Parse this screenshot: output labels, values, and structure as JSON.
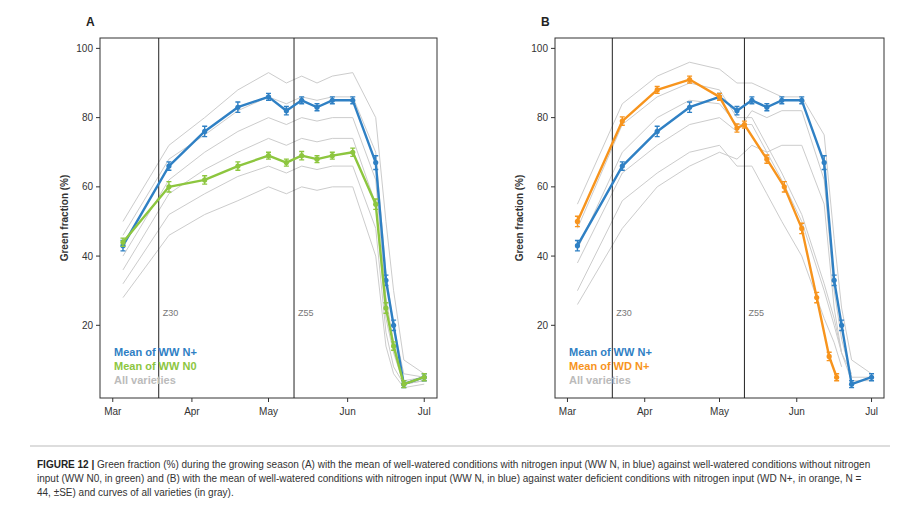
{
  "chart_data": [
    {
      "type": "line",
      "panel": "A",
      "y_label": "Green fraction (%)",
      "xlim": [
        55,
        187
      ],
      "xticks": [
        {
          "value": 60,
          "label": "Mar"
        },
        {
          "value": 91,
          "label": "Apr"
        },
        {
          "value": 121,
          "label": "May"
        },
        {
          "value": 152,
          "label": "Jun"
        },
        {
          "value": 182,
          "label": "Jul"
        }
      ],
      "ylim": [
        -1,
        103
      ],
      "yticks": [
        20,
        40,
        60,
        80,
        100
      ],
      "vlines": [
        {
          "value": 78,
          "label": "Z30"
        },
        {
          "value": 131,
          "label": "Z55"
        }
      ],
      "legend": "lower left",
      "series": [
        {
          "name": "Mean of WW N+",
          "color": "#2f80c4",
          "marker": "circle",
          "x": [
            64,
            82,
            96,
            109,
            121,
            128,
            134,
            140,
            146,
            154,
            163,
            167,
            170,
            174,
            182
          ],
          "values": [
            43,
            66,
            76,
            83,
            86,
            82,
            85,
            83,
            85,
            85,
            67,
            33,
            20,
            3,
            5
          ],
          "errors": [
            1.5,
            1.2,
            1.5,
            1.5,
            1,
            1.2,
            1,
            1,
            1,
            1,
            2,
            1.5,
            1.5,
            1,
            1
          ]
        },
        {
          "name": "Mean of WW N0",
          "color": "#8dc63f",
          "marker": "circle",
          "x": [
            64,
            82,
            96,
            109,
            121,
            128,
            134,
            140,
            146,
            154,
            163,
            167,
            170,
            174,
            182
          ],
          "values": [
            44,
            60,
            62,
            66,
            69,
            67,
            69,
            68,
            69,
            70,
            55,
            25,
            14,
            3,
            5
          ],
          "errors": [
            1.2,
            1.5,
            1.2,
            1.2,
            1,
            1,
            1.2,
            1,
            1,
            1.2,
            1.5,
            1.5,
            1.2,
            1,
            1
          ]
        },
        {
          "name": "All varieties",
          "color": "#cccccc",
          "x": [
            64,
            82,
            96,
            109,
            121,
            128,
            134,
            140,
            146,
            154,
            163,
            167,
            170,
            174,
            182
          ],
          "curves": [
            [
              50,
              72,
              80,
              88,
              93,
              90,
              92,
              90,
              92,
              93,
              80,
              50,
              30,
              10,
              6
            ],
            [
              46,
              68,
              75,
              82,
              86,
              84,
              86,
              85,
              86,
              86,
              70,
              35,
              20,
              6,
              5
            ],
            [
              40,
              62,
              70,
              76,
              80,
              78,
              80,
              79,
              80,
              80,
              62,
              28,
              15,
              4,
              5
            ],
            [
              36,
              58,
              65,
              70,
              74,
              72,
              74,
              73,
              74,
              74,
              55,
              22,
              12,
              3,
              4
            ],
            [
              32,
              52,
              58,
              63,
              66,
              64,
              66,
              65,
              66,
              66,
              48,
              18,
              8,
              3,
              4
            ],
            [
              28,
              46,
              52,
              56,
              60,
              58,
              60,
              59,
              60,
              60,
              40,
              14,
              6,
              2,
              3
            ]
          ]
        }
      ]
    },
    {
      "type": "line",
      "panel": "B",
      "y_label": "Green fraction (%)",
      "xlim": [
        55,
        187
      ],
      "xticks": [
        {
          "value": 60,
          "label": "Mar"
        },
        {
          "value": 91,
          "label": "Apr"
        },
        {
          "value": 121,
          "label": "May"
        },
        {
          "value": 152,
          "label": "Jun"
        },
        {
          "value": 182,
          "label": "Jul"
        }
      ],
      "ylim": [
        -1,
        103
      ],
      "yticks": [
        20,
        40,
        60,
        80,
        100
      ],
      "vlines": [
        {
          "value": 78,
          "label": "Z30"
        },
        {
          "value": 131,
          "label": "Z55"
        }
      ],
      "legend": "lower left",
      "series": [
        {
          "name": "Mean of WW N+",
          "color": "#2f80c4",
          "marker": "circle",
          "x": [
            64,
            82,
            96,
            109,
            121,
            128,
            134,
            140,
            146,
            154,
            163,
            167,
            170,
            174,
            182
          ],
          "values": [
            43,
            66,
            76,
            83,
            86,
            82,
            85,
            83,
            85,
            85,
            67,
            33,
            20,
            3,
            5
          ],
          "errors": [
            1.5,
            1.2,
            1.5,
            1.5,
            1,
            1.2,
            1,
            1,
            1,
            1,
            2,
            1.5,
            1.5,
            1,
            1
          ]
        },
        {
          "name": "Mean of WD N+",
          "color": "#f7941d",
          "marker": "circle",
          "x": [
            64,
            82,
            96,
            109,
            121,
            128,
            131,
            140,
            147,
            154,
            160,
            165,
            168
          ],
          "values": [
            50,
            79,
            88,
            91,
            86,
            77,
            78,
            68,
            60,
            48,
            28,
            11,
            5
          ],
          "errors": [
            1.5,
            1.2,
            1,
            1,
            1,
            1.2,
            1,
            1.2,
            1.5,
            1.5,
            1.5,
            1.2,
            1
          ]
        },
        {
          "name": "All varieties",
          "color": "#cccccc",
          "x": [
            64,
            82,
            96,
            109,
            121,
            128,
            134,
            140,
            146,
            154,
            163,
            167,
            170,
            174,
            182
          ],
          "curves": [
            [
              55,
              84,
              92,
              96,
              94,
              90,
              90,
              88,
              86,
              86,
              75,
              45,
              25,
              10,
              6
            ],
            [
              48,
              78,
              86,
              90,
              88,
              80,
              80,
              72,
              64,
              52,
              32,
              22,
              12,
              6,
              null
            ],
            [
              42,
              70,
              80,
              85,
              84,
              78,
              78,
              70,
              62,
              50,
              30,
              20,
              12,
              null,
              null
            ],
            [
              38,
              64,
              72,
              78,
              80,
              76,
              82,
              80,
              82,
              82,
              62,
              30,
              16,
              5,
              5
            ],
            [
              30,
              56,
              64,
              70,
              72,
              66,
              66,
              58,
              50,
              40,
              22,
              15,
              8,
              null,
              null
            ],
            [
              26,
              48,
              60,
              66,
              70,
              68,
              72,
              70,
              72,
              72,
              55,
              25,
              12,
              4,
              4
            ]
          ]
        }
      ]
    }
  ],
  "caption": {
    "label": "FIGURE 12 |",
    "text": "Green fraction (%) during the growing season (A) with the mean of well-watered conditions with nitrogen input (WW N, in blue) against well-watered conditions without nitrogen input (WW N0, in green) and (B) with the mean of well-watered conditions with nitrogen input (WW N, in blue) against water deficient conditions with nitrogen input (WD N+, in orange, N = 44, ±SE) and curves of all varieties (in gray)."
  }
}
